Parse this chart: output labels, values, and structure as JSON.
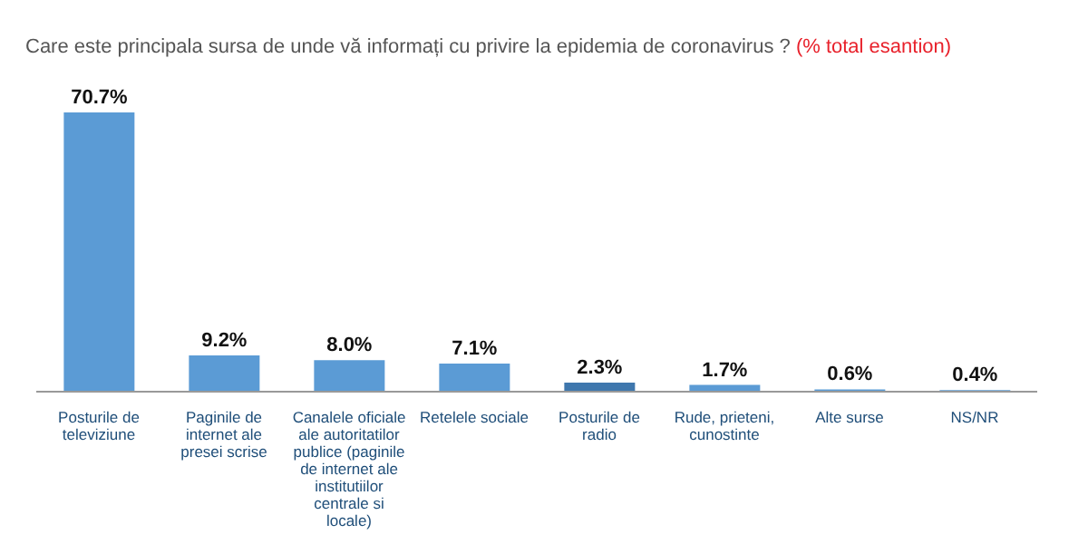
{
  "chart_data": {
    "type": "bar",
    "title": "Care este principala sursa de unde vă informați cu privire la epidemia de coronavirus ?",
    "subtitle": "(% total esantion)",
    "categories": [
      "Posturile de televiziune",
      "Paginile de internet ale presei scrise",
      "Canalele oficiale ale autoritatilor publice (paginile de internet ale institutiilor centrale si locale)",
      "Retelele sociale",
      "Posturile de radio",
      "Rude, prieteni, cunostinte",
      "Alte surse",
      "NS/NR"
    ],
    "values": [
      70.7,
      9.2,
      8.0,
      7.1,
      2.3,
      1.7,
      0.6,
      0.4
    ],
    "colors": [
      "#5b9bd5",
      "#5b9bd5",
      "#5b9bd5",
      "#5b9bd5",
      "#3f77ad",
      "#5b9bd5",
      "#5b9bd5",
      "#5b9bd5"
    ],
    "value_labels": [
      "70.7%",
      "9.2%",
      "8.0%",
      "7.1%",
      "2.3%",
      "1.7%",
      "0.6%",
      "0.4%"
    ],
    "tick_labels": "x"
  }
}
